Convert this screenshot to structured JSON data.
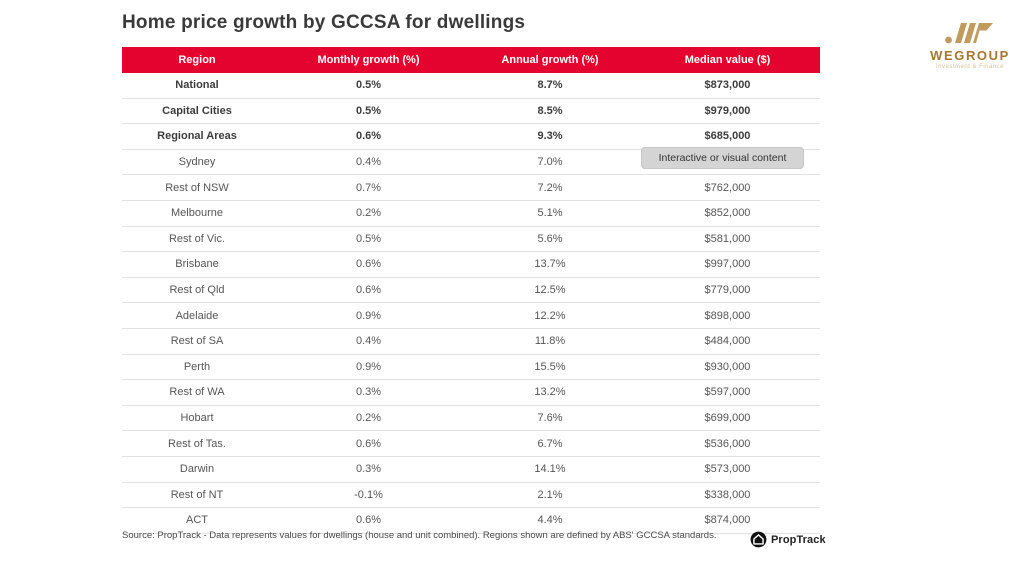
{
  "title": "Home price growth by GCCSA for dwellings",
  "brand": {
    "name": "WEGROUP",
    "tagline": "Investment & Finance",
    "gold": "#bf9b5e",
    "gold_dark": "#a6772f"
  },
  "colors": {
    "accent": "#e4032e",
    "row_border": "#e2e2e2",
    "tooltip_bg": "#d4d4d4"
  },
  "tooltip": {
    "text": "Interactive or visual content"
  },
  "chart_data": {
    "type": "table",
    "title": "Home price growth by GCCSA for dwellings",
    "columns": [
      "Region",
      "Monthly growth (%)",
      "Annual growth (%)",
      "Median value ($)"
    ],
    "rows": [
      {
        "region": "National",
        "monthly": "0.5%",
        "annual": "8.7%",
        "median": "$873,000",
        "bold": true
      },
      {
        "region": "Capital Cities",
        "monthly": "0.5%",
        "annual": "8.5%",
        "median": "$979,000",
        "bold": true
      },
      {
        "region": "Regional Areas",
        "monthly": "0.6%",
        "annual": "9.3%",
        "median": "$685,000",
        "bold": true
      },
      {
        "region": "Sydney",
        "monthly": "0.4%",
        "annual": "7.0%",
        "median": "",
        "bold": false
      },
      {
        "region": "Rest of NSW",
        "monthly": "0.7%",
        "annual": "7.2%",
        "median": "$762,000",
        "bold": false
      },
      {
        "region": "Melbourne",
        "monthly": "0.2%",
        "annual": "5.1%",
        "median": "$852,000",
        "bold": false
      },
      {
        "region": "Rest of Vic.",
        "monthly": "0.5%",
        "annual": "5.6%",
        "median": "$581,000",
        "bold": false
      },
      {
        "region": "Brisbane",
        "monthly": "0.6%",
        "annual": "13.7%",
        "median": "$997,000",
        "bold": false
      },
      {
        "region": "Rest of Qld",
        "monthly": "0.6%",
        "annual": "12.5%",
        "median": "$779,000",
        "bold": false
      },
      {
        "region": "Adelaide",
        "monthly": "0.9%",
        "annual": "12.2%",
        "median": "$898,000",
        "bold": false
      },
      {
        "region": "Rest of SA",
        "monthly": "0.4%",
        "annual": "11.8%",
        "median": "$484,000",
        "bold": false
      },
      {
        "region": "Perth",
        "monthly": "0.9%",
        "annual": "15.5%",
        "median": "$930,000",
        "bold": false
      },
      {
        "region": "Rest of WA",
        "monthly": "0.3%",
        "annual": "13.2%",
        "median": "$597,000",
        "bold": false
      },
      {
        "region": "Hobart",
        "monthly": "0.2%",
        "annual": "7.6%",
        "median": "$699,000",
        "bold": false
      },
      {
        "region": "Rest of Tas.",
        "monthly": "0.6%",
        "annual": "6.7%",
        "median": "$536,000",
        "bold": false
      },
      {
        "region": "Darwin",
        "monthly": "0.3%",
        "annual": "14.1%",
        "median": "$573,000",
        "bold": false
      },
      {
        "region": "Rest of NT",
        "monthly": "-0.1%",
        "annual": "2.1%",
        "median": "$338,000",
        "bold": false
      },
      {
        "region": "ACT",
        "monthly": "0.6%",
        "annual": "4.4%",
        "median": "$874,000",
        "bold": false
      }
    ]
  },
  "footer": {
    "source": "Source: PropTrack - Data represents values for dwellings (house and unit combined). Regions shown are defined by ABS' GCCSA standards.",
    "logo_text": "PropTrack"
  }
}
